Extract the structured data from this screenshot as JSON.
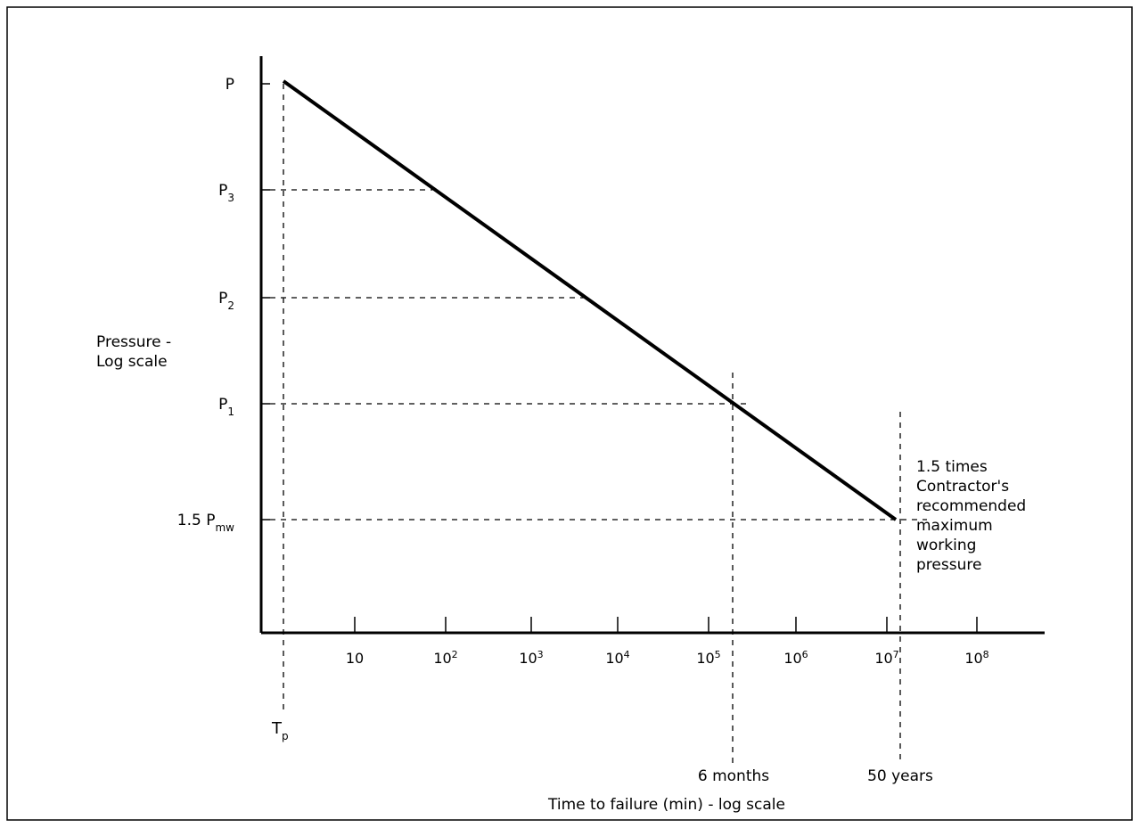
{
  "chart_data": {
    "type": "line",
    "xlabel": "Time to failure (min) - log scale",
    "ylabel_lines": [
      "Pressure -",
      "Log scale"
    ],
    "x_scale": "log",
    "y_scale": "log",
    "x_ticks": [
      {
        "base": "10",
        "exp": ""
      },
      {
        "base": "10",
        "exp": "2"
      },
      {
        "base": "10",
        "exp": "3"
      },
      {
        "base": "10",
        "exp": "4"
      },
      {
        "base": "10",
        "exp": "5"
      },
      {
        "base": "10",
        "exp": "6"
      },
      {
        "base": "10",
        "exp": "7"
      },
      {
        "base": "10",
        "exp": "8"
      }
    ],
    "y_ticks": [
      {
        "main": "P",
        "sub": ""
      },
      {
        "main": "P",
        "sub": "3"
      },
      {
        "main": "P",
        "sub": "2"
      },
      {
        "main": "P",
        "sub": "1"
      },
      {
        "main": "1.5 P",
        "sub": "mw"
      }
    ],
    "series": [
      {
        "points": [
          {
            "x_label": "T_p",
            "y_label": "P"
          },
          {
            "x_label": "50 years",
            "y_label": "1.5 P_mw"
          }
        ]
      }
    ],
    "x_markers": [
      {
        "main": "T",
        "sub": "p"
      },
      {
        "main": "6 months",
        "sub": ""
      },
      {
        "main": "50 years",
        "sub": ""
      }
    ],
    "annotation_lines": [
      "1.5 times",
      "Contractor's",
      "recommended",
      "maximum",
      "working",
      "pressure"
    ]
  }
}
